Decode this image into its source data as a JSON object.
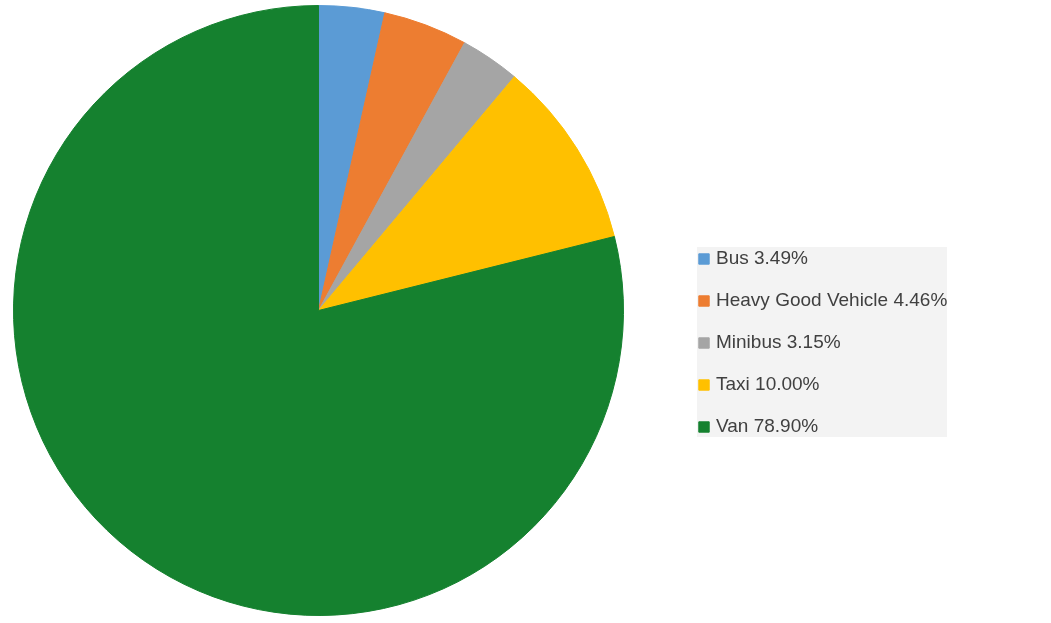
{
  "chart_data": {
    "type": "pie",
    "categories": [
      "Bus 3.49%",
      "Heavy Good Vehicle 4.46%",
      "Minibus 3.15%",
      "Taxi 10.00%",
      "Van 78.90%"
    ],
    "values": [
      3.49,
      4.46,
      3.15,
      10.0,
      78.9
    ],
    "colors": [
      "#5b9bd5",
      "#ed7d31",
      "#a5a5a5",
      "#ffc000",
      "#15812f"
    ],
    "legend": "right"
  }
}
